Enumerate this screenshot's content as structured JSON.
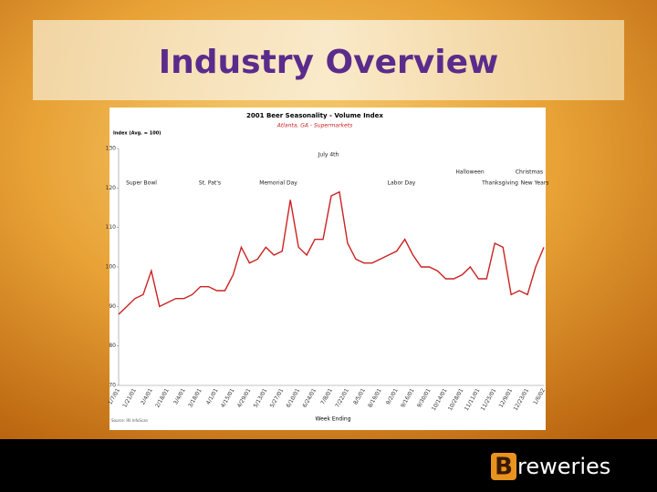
{
  "slide_title": "Industry Overview",
  "logo": {
    "initial": "B",
    "text": "reweries"
  },
  "chart_data": {
    "type": "line",
    "title": "2001 Beer Seasonality - Volume Index",
    "subtitle": "Atlanta, GA - Supermarkets",
    "y_label": "Index (Avg. = 100)",
    "x_label": "Week Ending",
    "source": "Source: IRI InfoScan",
    "annotations": [
      "Super Bowl",
      "St. Pat's",
      "Memorial Day",
      "July 4th",
      "Labor Day",
      "Halloween",
      "Thanksgiving",
      "Christmas",
      "New Years"
    ],
    "categories": [
      "1/7/01",
      null,
      "1/21/01",
      null,
      "2/4/01",
      null,
      "2/18/01",
      null,
      "3/4/01",
      null,
      "3/18/01",
      null,
      "4/1/01",
      null,
      "4/15/01",
      null,
      "4/29/01",
      null,
      "5/13/01",
      null,
      "5/27/01",
      null,
      "6/10/01",
      null,
      "6/24/01",
      null,
      "7/8/01",
      null,
      "7/22/01",
      null,
      "8/5/01",
      null,
      "8/19/01",
      null,
      "9/2/01",
      null,
      "9/16/01",
      null,
      "9/30/01",
      null,
      "10/14/01",
      null,
      "10/28/01",
      null,
      "11/11/01",
      null,
      "11/25/01",
      null,
      "12/9/01",
      null,
      "12/23/01",
      null,
      "1/6/02"
    ],
    "series": [
      {
        "name": "Volume Index",
        "color": "#cc2222",
        "values": [
          88,
          90,
          92,
          93,
          99,
          90,
          91,
          92,
          92,
          93,
          95,
          95,
          94,
          94,
          98,
          105,
          101,
          102,
          105,
          103,
          104,
          117,
          105,
          103,
          107,
          107,
          118,
          119,
          106,
          102,
          101,
          101,
          102,
          103,
          104,
          107,
          103,
          100,
          100,
          99,
          97,
          97,
          98,
          100,
          97,
          97,
          106,
          105,
          93,
          94,
          93,
          100,
          105
        ]
      }
    ],
    "ylim": [
      70,
      130
    ],
    "yticks": [
      70,
      80,
      90,
      100,
      110,
      120,
      130
    ],
    "grid": false
  }
}
